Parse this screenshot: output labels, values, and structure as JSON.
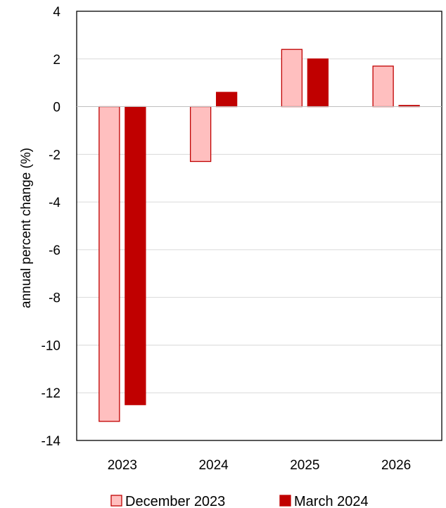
{
  "chart_data": {
    "type": "bar",
    "title": "",
    "xlabel": "",
    "ylabel": "annual percent change (%)",
    "categories": [
      "2023",
      "2024",
      "2025",
      "2026"
    ],
    "series": [
      {
        "name": "December 2023",
        "values": [
          -13.2,
          -2.3,
          2.4,
          1.7
        ],
        "fill": "#ffbfbf",
        "stroke": "#c00000"
      },
      {
        "name": "March 2024",
        "values": [
          -12.5,
          0.6,
          2.0,
          0.05
        ],
        "fill": "#c00000",
        "stroke": "#c00000"
      }
    ],
    "ylim": [
      -14,
      4
    ],
    "yticks": [
      -14,
      -12,
      -10,
      -8,
      -6,
      -4,
      -2,
      0,
      2,
      4
    ],
    "grid": true,
    "legend": "bottom"
  }
}
